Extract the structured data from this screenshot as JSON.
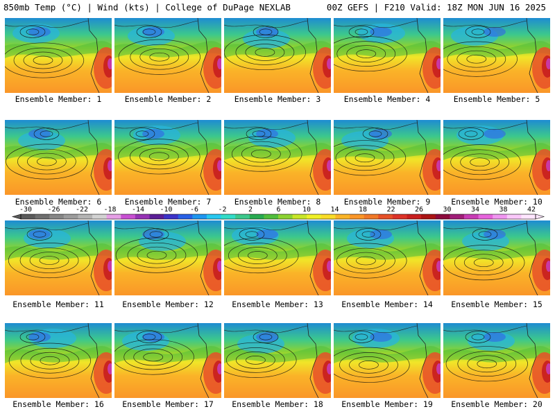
{
  "header": {
    "left": "850mb Temp (°C) | Wind (kts) | College of DuPage NEXLAB",
    "right": "00Z GEFS | F210 Valid: 18Z MON JUN 16 2025"
  },
  "members": [
    "Ensemble Member: 1",
    "Ensemble Member: 2",
    "Ensemble Member: 3",
    "Ensemble Member: 4",
    "Ensemble Member: 5",
    "Ensemble Member: 6",
    "Ensemble Member: 7",
    "Ensemble Member: 8",
    "Ensemble Member: 9",
    "Ensemble Member: 10",
    "Ensemble Member: 11",
    "Ensemble Member: 12",
    "Ensemble Member: 13",
    "Ensemble Member: 14",
    "Ensemble Member: 15",
    "Ensemble Member: 16",
    "Ensemble Member: 17",
    "Ensemble Member: 18",
    "Ensemble Member: 19",
    "Ensemble Member: 20"
  ],
  "colorbar": {
    "ticks": [
      "-30",
      "-26",
      "-22",
      "-18",
      "-14",
      "-10",
      "-6",
      "-2",
      "2",
      "6",
      "10",
      "14",
      "18",
      "22",
      "26",
      "30",
      "34",
      "38",
      "42"
    ],
    "colors": [
      "#5a5a5a",
      "#6e6e6e",
      "#868686",
      "#9c9c9c",
      "#b4b4b4",
      "#d2d2d2",
      "#e6a0e6",
      "#c850d2",
      "#9632b4",
      "#5a1e96",
      "#3c32c8",
      "#2860e6",
      "#1e96f0",
      "#28c8f0",
      "#32dcc8",
      "#3cc88c",
      "#28aa50",
      "#50be3c",
      "#8cd232",
      "#c8e628",
      "#f0f028",
      "#fadc28",
      "#fab428",
      "#fa9628",
      "#f07828",
      "#e65028",
      "#dc3228",
      "#c81e1e",
      "#aa1414",
      "#8c0a3c",
      "#a01e78",
      "#c83cb4",
      "#e664dc",
      "#f096f0",
      "#fac8fa",
      "#ffe6ff"
    ]
  },
  "chart_data": {
    "type": "heatmap",
    "title": "850mb Temp (°C) | Wind (kts)",
    "legend_values": [
      -30,
      -26,
      -22,
      -18,
      -14,
      -10,
      -6,
      -2,
      2,
      6,
      10,
      14,
      18,
      22,
      26,
      30,
      34,
      38,
      42
    ],
    "panel_count": 20,
    "layout": "4 rows x 5 columns",
    "panels": [
      "Ensemble Member: 1",
      "Ensemble Member: 2",
      "Ensemble Member: 3",
      "Ensemble Member: 4",
      "Ensemble Member: 5",
      "Ensemble Member: 6",
      "Ensemble Member: 7",
      "Ensemble Member: 8",
      "Ensemble Member: 9",
      "Ensemble Member: 10",
      "Ensemble Member: 11",
      "Ensemble Member: 12",
      "Ensemble Member: 13",
      "Ensemble Member: 14",
      "Ensemble Member: 15",
      "Ensemble Member: 16",
      "Ensemble Member: 17",
      "Ensemble Member: 18",
      "Ensemble Member: 19",
      "Ensemble Member: 20"
    ]
  }
}
